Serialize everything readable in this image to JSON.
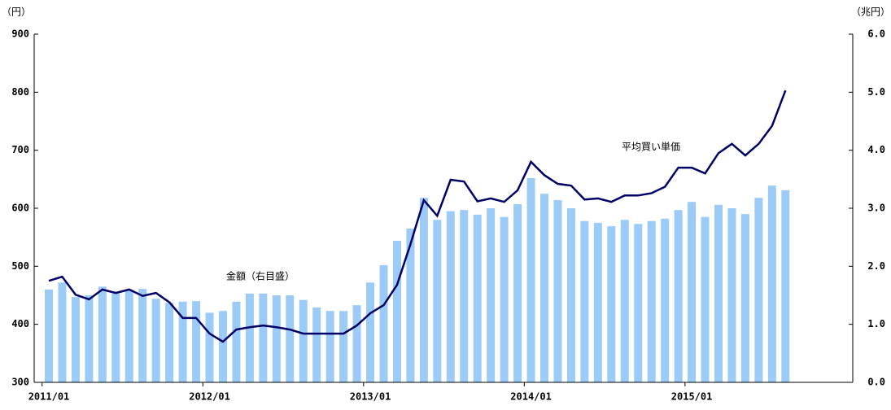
{
  "chart_data": {
    "type": "bar-line",
    "y_unit": "（円）",
    "y2_unit": "（兆円）",
    "annotations": [
      "金額（右目盛）",
      "平均買い単価"
    ],
    "categories": [
      "2011/01",
      null,
      null,
      null,
      null,
      null,
      null,
      null,
      null,
      null,
      null,
      null,
      "2012/01",
      null,
      null,
      null,
      null,
      null,
      null,
      null,
      null,
      null,
      null,
      null,
      "2013/01",
      null,
      null,
      null,
      null,
      null,
      null,
      null,
      null,
      null,
      null,
      null,
      "2014/01",
      null,
      null,
      null,
      null,
      null,
      null,
      null,
      null,
      null,
      null,
      null,
      "2015/01",
      null,
      null,
      null,
      null,
      null,
      null,
      null
    ],
    "series": [
      {
        "name": "金額（右目盛）",
        "type": "bar",
        "axis": "y2",
        "color": "#9dcbf7",
        "values": [
          1.6,
          1.72,
          1.47,
          1.5,
          1.65,
          1.53,
          1.58,
          1.61,
          1.44,
          1.37,
          1.39,
          1.4,
          1.2,
          1.23,
          1.39,
          1.53,
          1.53,
          1.5,
          1.5,
          1.42,
          1.29,
          1.23,
          1.23,
          1.33,
          1.72,
          2.02,
          2.44,
          2.65,
          3.18,
          2.8,
          2.95,
          2.97,
          2.89,
          3.0,
          2.85,
          3.07,
          3.52,
          3.25,
          3.14,
          3.0,
          2.78,
          2.75,
          2.69,
          2.8,
          2.73,
          2.78,
          2.82,
          2.97,
          3.11,
          2.85,
          3.06,
          3.0,
          2.9,
          3.18,
          3.39,
          3.31
        ]
      },
      {
        "name": "平均買い単価",
        "type": "line",
        "axis": "y",
        "color": "#000066",
        "values": [
          475,
          482,
          451,
          443,
          460,
          454,
          460,
          449,
          454,
          438,
          411,
          411,
          384,
          370,
          391,
          395,
          398,
          395,
          391,
          384,
          384,
          384,
          384,
          398,
          419,
          433,
          468,
          538,
          614,
          587,
          649,
          646,
          612,
          617,
          611,
          631,
          680,
          657,
          642,
          639,
          615,
          617,
          611,
          622,
          622,
          626,
          637,
          670,
          670,
          660,
          695,
          711,
          691,
          711,
          742,
          803
        ]
      }
    ],
    "ylim": [
      300,
      900
    ],
    "yticks": [
      300,
      400,
      500,
      600,
      700,
      800,
      900
    ],
    "y2lim": [
      0,
      6
    ],
    "y2ticks": [
      {
        "value": 0,
        "label": "0.0"
      },
      {
        "value": 1,
        "label": "1.0"
      },
      {
        "value": 2,
        "label": "2.0"
      },
      {
        "value": 3,
        "label": "3.0"
      },
      {
        "value": 4,
        "label": "4.0"
      },
      {
        "value": 5,
        "label": "5.0"
      },
      {
        "value": 6,
        "label": "6.0"
      }
    ]
  }
}
